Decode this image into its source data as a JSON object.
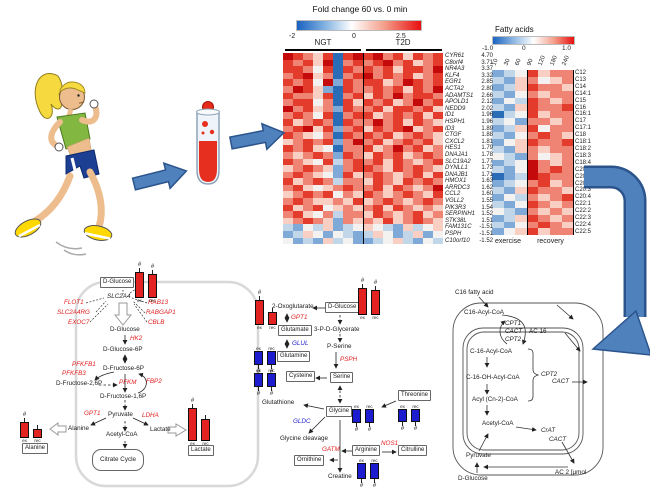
{
  "misc": {
    "hash": "#"
  },
  "colors": {
    "flow_arrow_fill": "#4f81bd",
    "flow_arrow_edge": "#2c548c",
    "upregulated_bar": "#e32222",
    "downregulated_bar": "#1d1dcf",
    "up_gene_text": "#e02222",
    "down_gene_text": "#2121d0"
  },
  "chart_data": [
    {
      "type": "heatmap",
      "title": "Fold change 60 vs. 0 min",
      "scale_ticks": [
        "-2",
        "0",
        "2.5"
      ],
      "scale_range": [
        -2,
        2.5
      ],
      "groups": [
        "NGT",
        "T2D"
      ],
      "legend_position": "top",
      "genes": [
        [
          "CYR61",
          "4.70"
        ],
        [
          "C8orf4",
          "3.71"
        ],
        [
          "NR4A3",
          "3.37"
        ],
        [
          "KLF4",
          "3.32"
        ],
        [
          "EGR1",
          "2.85"
        ],
        [
          "ACTA2",
          "2.80"
        ],
        [
          "ADAMTS1",
          "2.66"
        ],
        [
          "APOLD1",
          "2.12"
        ],
        [
          "NEDD9",
          "2.02"
        ],
        [
          "ID1",
          "1.96"
        ],
        [
          "HSPH1",
          "1.96"
        ],
        [
          "ID3",
          "1.89"
        ],
        [
          "CTGF",
          "1.88"
        ],
        [
          "CXCL2",
          "1.81"
        ],
        [
          "HES1",
          "1.79"
        ],
        [
          "DNAJA1",
          "1.78"
        ],
        [
          "SLC19A2",
          "1.77"
        ],
        [
          "DYNLL1",
          "1.73"
        ],
        [
          "DNAJB1",
          "1.71"
        ],
        [
          "HMOX1",
          "1.63"
        ],
        [
          "ARRDC3",
          "1.62"
        ],
        [
          "CCL2",
          "1.60"
        ],
        [
          "VGLL2",
          "1.55"
        ],
        [
          "PIK3R3",
          "1.54"
        ],
        [
          "SERPINH1",
          "1.52"
        ],
        [
          "STK38L",
          "1.51"
        ],
        [
          "FAM131C",
          "-1.51"
        ],
        [
          "PSPH",
          "-1.51"
        ],
        [
          "C10orf10",
          "-1.52"
        ]
      ],
      "cells_encoded_at": "heatmaps.main"
    },
    {
      "type": "heatmap",
      "title": "Fatty acids",
      "scale_ticks": [
        "-1.0",
        "0",
        "1.0"
      ],
      "scale_range": [
        -1,
        1
      ],
      "columns": [
        "10",
        "30",
        "60",
        "90",
        "120",
        "180",
        "240"
      ],
      "groups": [
        "exercise",
        "recovery"
      ],
      "rows": [
        "C12",
        "C13",
        "C14",
        "C14:1",
        "C15",
        "C16",
        "C16:1",
        "C17",
        "C17:1",
        "C18",
        "C18:1",
        "C18:2",
        "C18:3",
        "C18:4",
        "C20",
        "C20:1",
        "C20:2",
        "C20:3",
        "C20:4",
        "C22:1",
        "C22:2",
        "C22:3",
        "C22:4",
        "C22:5"
      ],
      "cells_encoded_at": "heatmaps.fatty"
    },
    {
      "type": "bar",
      "note": "paired ex/rec mini bar charts beside metabolites; values at bar_charts"
    }
  ],
  "heatmaps": {
    "palette": {
      "B": "#2a6cb5",
      "b": "#7fa9d6",
      "c": "#c2d6ea",
      "w": "#f4f2f0",
      "o": "#f8cfc2",
      "r": "#ef8474",
      "R": "#e33b2c",
      "D": "#c40a0a"
    },
    "main": {
      "rows": [
        "DRroRBRDRDrRoRrR",
        "RrRoDBrRrRDrRorR",
        "RRrwRBRrRrRoRRrD",
        "rRDorBrRDrRrRorR",
        "RrRwDbRrRRorDRrR",
        "rDRobBRrrRrRoRrD",
        "RrroRBrRoRrDrRRr",
        "rRRwrBRoRrRorDrR",
        "DrRorbRrrRoRRrRo",
        "rRrwRBrRRorRrRoR",
        "RorRrBRrrDrRoRro",
        "rRDoRbrRoRrRDorR",
        "RrowrBRrRrRorRro",
        "orRrRbrDrRorRrRo",
        "RrRowBrrRorDrRor",
        "rorRrbRroRrRorRr",
        "RrowRcrRrRoRrorR",
        "orRrobrRRroRrRro",
        "rRrowbRorRrorRoR",
        "RorRrcrroRroRrRr",
        "rRoworRrrRoRrorD",
        "orRrRwroRrorRroR",
        "rRrooroRorRrorRr",
        "RorRwororRoRroro",
        "rRowrcrroRrorRor",
        "orRrobroroRorRro",
        "cbwcobcwowcbocwo",
        "bcowbwcbcowbcobw",
        "wbcbocwbbcwocbwc"
      ]
    },
    "fatty": {
      "rows": [
        "bcwRorr",
        "cborwor",
        "bcoRrro",
        "cbwrorr",
        "bwcRror",
        "cboRrrR",
        "BcwRorr",
        "cwbrror",
        "bcoRwrr",
        "cbwrRro",
        "bwoRrrR",
        "cbororr",
        "wcbrwor",
        "bcwDror",
        "cbwDrRr",
        "BbcDRrr",
        "bcwrRor",
        "cboRrro",
        "bwcrorR",
        "cbwRror",
        "wcbroro",
        "bcoRror",
        "cbwrRro",
        "bwoRorr"
      ]
    }
  },
  "bar_charts": {
    "glucose_l": {
      "color": "#e32222",
      "dir": "up",
      "bars": [
        {
          "label": "ex",
          "len": 26,
          "hash": true
        },
        {
          "label": "rec",
          "len": 24,
          "hash": true
        }
      ]
    },
    "alanine": {
      "color": "#e32222",
      "dir": "up",
      "bars": [
        {
          "label": "ex",
          "len": 16,
          "hash": true
        },
        {
          "label": "rec",
          "len": 9,
          "hash": false
        }
      ]
    },
    "lactate": {
      "color": "#e32222",
      "dir": "up",
      "bars": [
        {
          "label": "ex",
          "len": 33,
          "hash": true
        },
        {
          "label": "rec",
          "len": 22,
          "hash": false
        }
      ]
    },
    "oxoglutarate": {
      "color": "#e32222",
      "dir": "up",
      "bars": [
        {
          "label": "ex",
          "len": 25,
          "hash": true
        },
        {
          "label": "rec",
          "len": 13,
          "hash": false
        }
      ]
    },
    "glucose_c": {
      "color": "#e32222",
      "dir": "up",
      "bars": [
        {
          "label": "ex",
          "len": 27,
          "hash": true
        },
        {
          "label": "rec",
          "len": 25,
          "hash": true
        }
      ]
    },
    "glutamine": {
      "color": "#1d1dcf",
      "dir": "down",
      "bars": [
        {
          "label": "ex",
          "len": 14,
          "hash": true
        },
        {
          "label": "rec",
          "len": 14,
          "hash": true
        }
      ]
    },
    "cysteine": {
      "color": "#1d1dcf",
      "dir": "down",
      "bars": [
        {
          "label": "ex",
          "len": 14,
          "hash": true
        },
        {
          "label": "rec",
          "len": 14,
          "hash": true
        }
      ]
    },
    "glycine": {
      "color": "#1d1dcf",
      "dir": "down",
      "bars": [
        {
          "label": "ex",
          "len": 14,
          "hash": true
        },
        {
          "label": "rec",
          "len": 14,
          "hash": true
        }
      ]
    },
    "threonine": {
      "color": "#1d1dcf",
      "dir": "down",
      "bars": [
        {
          "label": "ex",
          "len": 13,
          "hash": true
        },
        {
          "label": "rec",
          "len": 13,
          "hash": true
        }
      ]
    },
    "arginine": {
      "color": "#1d1dcf",
      "dir": "down",
      "bars": [
        {
          "label": "ex",
          "len": 16,
          "hash": true
        },
        {
          "label": "rec",
          "len": 16,
          "hash": true
        }
      ]
    }
  },
  "labels": {
    "glyc": {
      "glucose_box": "D-Glucose",
      "slc2a4": "SLC2A4",
      "flot1": "FLOT1",
      "slc2a4rg": "SLC2A4RG",
      "exoc7": "EXOC7",
      "rab13": "RAB13",
      "rabgap1": "RABGAP1",
      "cblb": "CBLB",
      "glucose": "D-Glucose",
      "hk2": "HK2",
      "g6p": "D-Glucose-6P",
      "pfkfb1": "PFKFB1",
      "pfkfb3": "PFKFB3",
      "f6p": "D-Fructose-6P",
      "f26p": "D-Fructose-2,6P",
      "pfkm": "PFKM",
      "fbp2": "FBP2",
      "f16p": "D-Fructose-1,6P",
      "pyruvate": "Pyruvate",
      "gpt1": "GPT1",
      "ldha": "LDHA",
      "alanine": "Alanine",
      "lactate": "Lactate",
      "acetylcoa": "Acetyl-CoA",
      "citrate": "Citrate Cycle",
      "alanine_box": "Alanine",
      "lactate_box": "Lactate"
    },
    "center": {
      "oxoglutarate": "2-Oxoglutarate",
      "glucose_box": "D-Glucose",
      "gpt1": "GPT1",
      "glutamate": "Glutamate",
      "glul": "GLUL",
      "glutamine": "Glutamine",
      "glycerate": "3-P-D-Glycerate",
      "pserine": "P-Serine",
      "psph": "PSPH",
      "serine": "Serine",
      "cysteine": "Cysteine",
      "glutathione": "Glutathione",
      "glycine": "Glycine",
      "threonine": "Threonine",
      "gldc": "GLDC",
      "cleavage": "Glycine cleavage",
      "gatm": "GATM",
      "ornithine": "Ornithine",
      "creatine": "Creatine",
      "arginine": "Arginine",
      "nos1": "NOS1",
      "citrulline": "Citrulline"
    },
    "c16": {
      "title": "C16 fatty acid",
      "c16acylcoa": "C16-Acyl-CoA",
      "cpt1": "CPT1",
      "cact_a": "CACT",
      "ac16": "AC 16",
      "cpt2_a": "CPT2",
      "c16acyl": "C-16-Acyl-CoA",
      "c16oh": "C-16-OH-Acyl-CoA",
      "acyl": "Acyl (Cn-2)-CoA",
      "cpt2_b": "CPT2",
      "cact_b": "CACT",
      "acetyl": "Acetyl-CoA",
      "crat": "CrAT",
      "cact_c": "CACT",
      "pyruvate": "Pyruvate",
      "glucose": "D-Glucose",
      "ac2": "AC 2 [µmol"
    }
  }
}
